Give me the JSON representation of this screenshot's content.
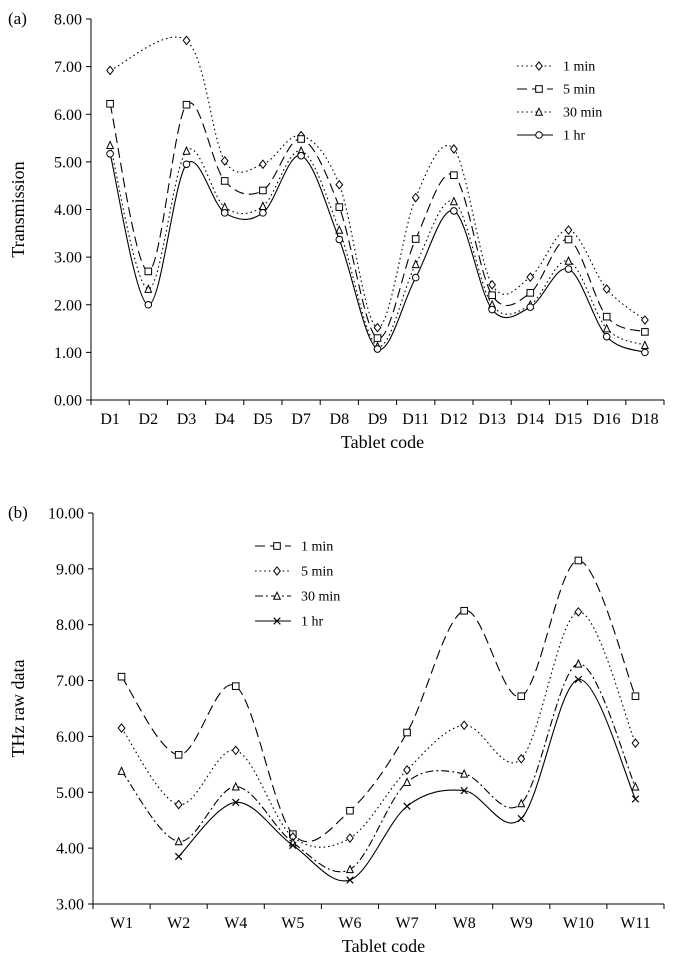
{
  "chart_data": [
    {
      "panel_label": "(a)",
      "type": "line",
      "smooth": true,
      "categories": [
        "D1",
        "D2",
        "D3",
        "D4",
        "D5",
        "D7",
        "D8",
        "D9",
        "D11",
        "D12",
        "D13",
        "D14",
        "D15",
        "D16",
        "D18"
      ],
      "xlabel": "Tablet code",
      "ylabel": "Transmission",
      "ylim": [
        0,
        8
      ],
      "yticks": [
        "0.00",
        "1.00",
        "2.00",
        "3.00",
        "4.00",
        "5.00",
        "6.00",
        "7.00",
        "8.00"
      ],
      "grid": false,
      "legend_position": "top-right",
      "series": [
        {
          "name": "1 min",
          "marker": "diamond",
          "dash": "dotted",
          "values": [
            6.92,
            null,
            7.55,
            5.02,
            4.95,
            5.55,
            4.52,
            1.52,
            4.25,
            5.27,
            2.42,
            2.58,
            3.57,
            2.33,
            1.68
          ]
        },
        {
          "name": "5 min",
          "marker": "square",
          "dash": "longdash",
          "values": [
            6.22,
            2.7,
            6.2,
            4.6,
            4.4,
            5.48,
            4.05,
            1.3,
            3.38,
            4.72,
            2.2,
            2.25,
            3.37,
            1.75,
            1.43
          ]
        },
        {
          "name": "30 min",
          "marker": "triangle",
          "dash": "dotted",
          "values": [
            5.35,
            2.33,
            5.23,
            4.05,
            4.07,
            5.23,
            3.57,
            1.13,
            2.85,
            4.17,
            2.0,
            2.0,
            2.92,
            1.5,
            1.15
          ]
        },
        {
          "name": "1 hr",
          "marker": "circle",
          "dash": "solid",
          "values": [
            5.17,
            2.0,
            4.95,
            3.93,
            3.93,
            5.13,
            3.37,
            1.07,
            2.57,
            3.97,
            1.9,
            1.95,
            2.75,
            1.33,
            1.0
          ]
        }
      ]
    },
    {
      "panel_label": "(b)",
      "type": "line",
      "smooth": true,
      "categories": [
        "W1",
        "W2",
        "W4",
        "W5",
        "W6",
        "W7",
        "W8",
        "W9",
        "W10",
        "W11"
      ],
      "xlabel": "Tablet code",
      "ylabel": "THz raw data",
      "ylim": [
        3,
        10
      ],
      "yticks": [
        "3.00",
        "4.00",
        "5.00",
        "6.00",
        "7.00",
        "8.00",
        "9.00",
        "10.00"
      ],
      "grid": false,
      "legend_position": "top-left",
      "series": [
        {
          "name": "1 min",
          "marker": "square",
          "dash": "longdash",
          "values": [
            7.07,
            5.67,
            6.9,
            4.25,
            4.67,
            6.07,
            8.25,
            6.72,
            9.15,
            6.72
          ]
        },
        {
          "name": "5 min",
          "marker": "diamond",
          "dash": "dotted",
          "values": [
            6.15,
            4.78,
            5.75,
            4.2,
            4.18,
            5.4,
            6.2,
            5.6,
            8.23,
            5.88
          ]
        },
        {
          "name": "30 min",
          "marker": "triangle",
          "dash": "dashdot",
          "values": [
            5.38,
            4.12,
            5.1,
            4.1,
            3.62,
            5.18,
            5.33,
            4.8,
            7.3,
            5.1
          ]
        },
        {
          "name": "1 hr",
          "marker": "cross",
          "dash": "solid",
          "values": [
            null,
            3.85,
            4.82,
            4.05,
            3.43,
            4.75,
            5.03,
            4.53,
            7.02,
            4.88
          ]
        }
      ]
    }
  ]
}
